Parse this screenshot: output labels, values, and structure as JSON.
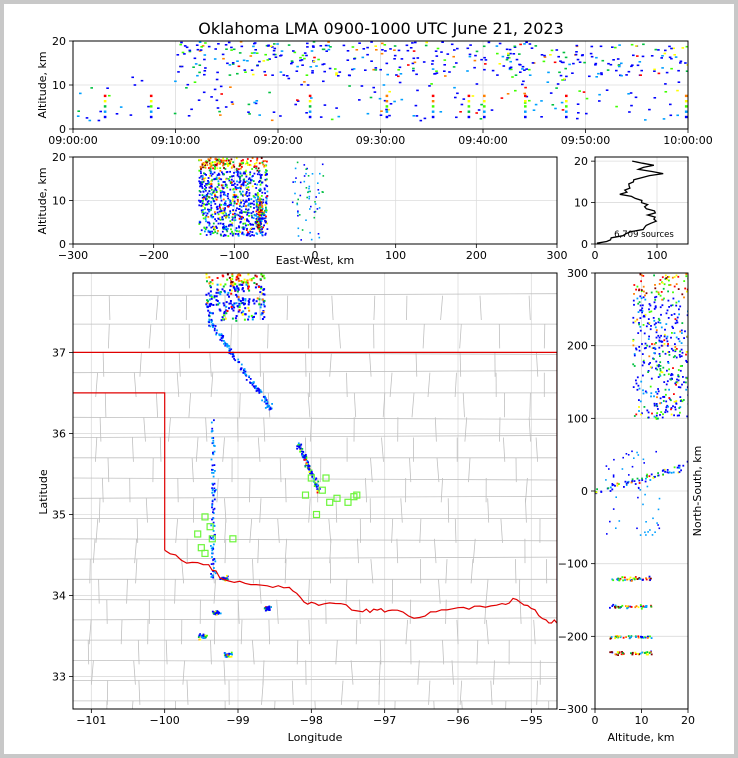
{
  "title": "Oklahoma LMA 0900-1000 UTC June 21, 2023",
  "chart_data": [
    {
      "id": "time-altitude",
      "type": "heatmap",
      "ylabel": "Altitude, km",
      "xlabel": "",
      "x_tick_labels": [
        "09:00:00",
        "09:10:00",
        "09:20:00",
        "09:30:00",
        "09:40:00",
        "09:50:00",
        "10:00:00"
      ],
      "xlim_minutes": [
        0,
        60
      ],
      "ylim": [
        0,
        20
      ],
      "y_ticks": [
        0,
        10,
        20
      ]
    },
    {
      "id": "ew-altitude",
      "type": "heatmap",
      "xlabel": "East-West, km",
      "ylabel": "Altitude, km",
      "xlim": [
        -300,
        300
      ],
      "ylim": [
        0,
        20
      ],
      "x_ticks": [
        -300,
        -200,
        -100,
        0,
        100,
        200,
        300
      ],
      "y_ticks": [
        0,
        10,
        20
      ]
    },
    {
      "id": "altitude-histogram",
      "type": "line",
      "xlim": [
        0,
        150
      ],
      "ylim": [
        0,
        21
      ],
      "x_ticks": [
        0,
        100
      ],
      "y_ticks": [
        0,
        10,
        20
      ],
      "annotation": "6,709 sources",
      "profile": [
        {
          "alt": 0.2,
          "count": 3
        },
        {
          "alt": 1,
          "count": 25
        },
        {
          "alt": 2,
          "count": 45
        },
        {
          "alt": 3,
          "count": 58
        },
        {
          "alt": 4,
          "count": 80
        },
        {
          "alt": 5,
          "count": 90
        },
        {
          "alt": 6,
          "count": 95
        },
        {
          "alt": 7,
          "count": 85
        },
        {
          "alt": 8,
          "count": 96
        },
        {
          "alt": 9,
          "count": 80
        },
        {
          "alt": 10,
          "count": 75
        },
        {
          "alt": 11,
          "count": 65
        },
        {
          "alt": 12,
          "count": 40
        },
        {
          "alt": 13,
          "count": 48
        },
        {
          "alt": 14,
          "count": 55
        },
        {
          "alt": 15,
          "count": 62
        },
        {
          "alt": 16,
          "count": 75
        },
        {
          "alt": 17,
          "count": 110
        },
        {
          "alt": 18,
          "count": 70
        },
        {
          "alt": 19,
          "count": 95
        },
        {
          "alt": 20,
          "count": 60
        }
      ]
    },
    {
      "id": "plan-view",
      "type": "scatter",
      "xlabel": "Longitude",
      "ylabel": "Latitude",
      "xlim": [
        -101.25,
        -94.65
      ],
      "ylim": [
        32.6,
        37.98
      ],
      "x_ticks": [
        -101,
        -100,
        -99,
        -98,
        -97,
        -96,
        -95
      ],
      "y_ticks": [
        33,
        34,
        35,
        36,
        37
      ],
      "stations": [
        {
          "lon": -99.55,
          "lat": 34.76
        },
        {
          "lon": -99.45,
          "lat": 34.97
        },
        {
          "lon": -99.38,
          "lat": 34.85
        },
        {
          "lon": -99.35,
          "lat": 34.7
        },
        {
          "lon": -99.07,
          "lat": 34.7
        },
        {
          "lon": -99.5,
          "lat": 34.59
        },
        {
          "lon": -99.45,
          "lat": 34.52
        },
        {
          "lon": -98.08,
          "lat": 35.24
        },
        {
          "lon": -98.0,
          "lat": 35.45
        },
        {
          "lon": -97.93,
          "lat": 35.0
        },
        {
          "lon": -97.85,
          "lat": 35.3
        },
        {
          "lon": -97.8,
          "lat": 35.45
        },
        {
          "lon": -97.75,
          "lat": 35.15
        },
        {
          "lon": -97.65,
          "lat": 35.2
        },
        {
          "lon": -97.5,
          "lat": 35.15
        },
        {
          "lon": -97.42,
          "lat": 35.22
        },
        {
          "lon": -97.38,
          "lat": 35.24
        }
      ],
      "station_color": "#6cf53a",
      "border_color": "#e00000"
    },
    {
      "id": "altitude-ns",
      "type": "heatmap",
      "xlabel": "Altitude, km",
      "ylabel": "North-South, km",
      "xlim": [
        0,
        20
      ],
      "ylim": [
        -300,
        300
      ],
      "x_ticks": [
        0,
        10,
        20
      ],
      "y_ticks": [
        -300,
        -200,
        -100,
        0,
        100,
        200,
        300
      ]
    }
  ],
  "colors": {
    "scale": [
      "#0000ff",
      "#00a0ff",
      "#00c040",
      "#40ff00",
      "#ffff00",
      "#ff8000",
      "#ff0000",
      "#800000"
    ],
    "grid": "#dcdcdc",
    "map_lines": "#c0c0c0"
  }
}
